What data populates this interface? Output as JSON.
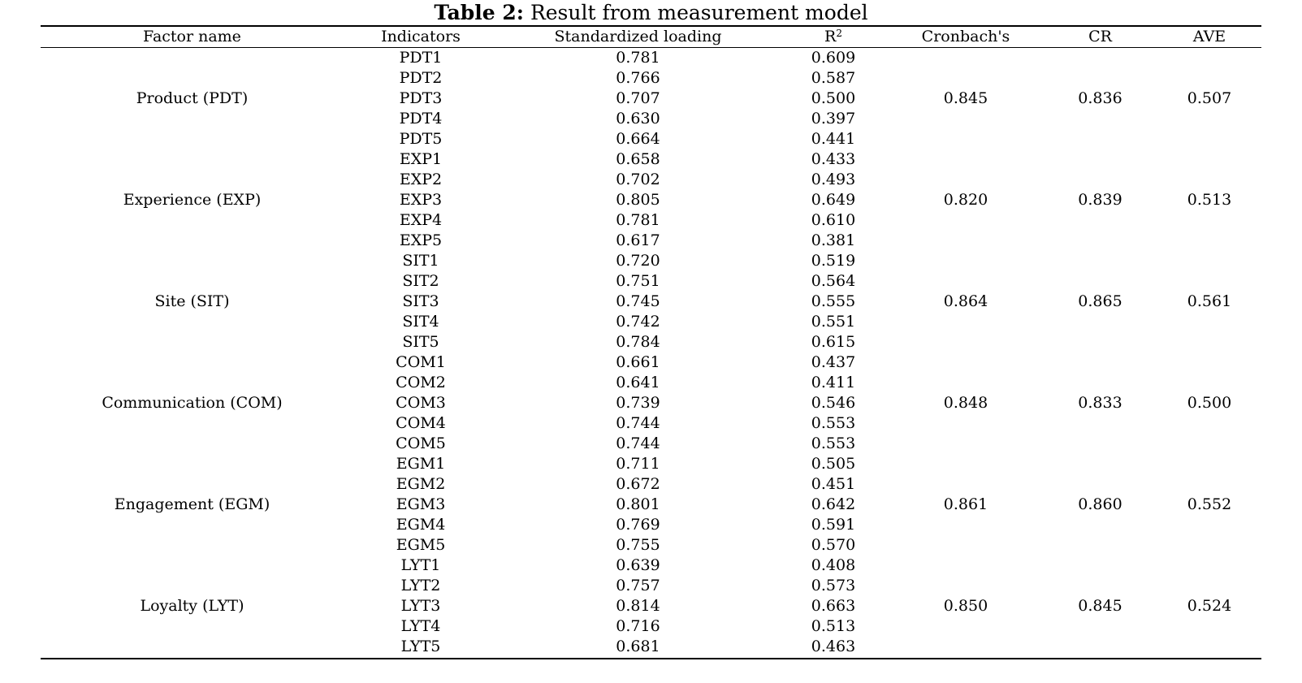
{
  "caption": {
    "label": "Table 2:",
    "text": "Result from measurement model"
  },
  "headers": {
    "factor": "Factor name",
    "indicators": "Indicators",
    "loading": "Standardized loading",
    "r2_base": "R",
    "r2_sup": "2",
    "cronbach": "Cronbach's",
    "cr": "CR",
    "ave": "AVE"
  },
  "factors": [
    {
      "name": "Product (PDT)",
      "cronbach": "0.845",
      "cr": "0.836",
      "ave": "0.507",
      "items": [
        {
          "indicator": "PDT1",
          "loading": "0.781",
          "r2": "0.609"
        },
        {
          "indicator": "PDT2",
          "loading": "0.766",
          "r2": "0.587"
        },
        {
          "indicator": "PDT3",
          "loading": "0.707",
          "r2": "0.500"
        },
        {
          "indicator": "PDT4",
          "loading": "0.630",
          "r2": "0.397"
        },
        {
          "indicator": "PDT5",
          "loading": "0.664",
          "r2": "0.441"
        }
      ]
    },
    {
      "name": "Experience (EXP)",
      "cronbach": "0.820",
      "cr": "0.839",
      "ave": "0.513",
      "items": [
        {
          "indicator": "EXP1",
          "loading": "0.658",
          "r2": "0.433"
        },
        {
          "indicator": "EXP2",
          "loading": "0.702",
          "r2": "0.493"
        },
        {
          "indicator": "EXP3",
          "loading": "0.805",
          "r2": "0.649"
        },
        {
          "indicator": "EXP4",
          "loading": "0.781",
          "r2": "0.610"
        },
        {
          "indicator": "EXP5",
          "loading": "0.617",
          "r2": "0.381"
        }
      ]
    },
    {
      "name": "Site (SIT)",
      "cronbach": "0.864",
      "cr": "0.865",
      "ave": "0.561",
      "items": [
        {
          "indicator": "SIT1",
          "loading": "0.720",
          "r2": "0.519"
        },
        {
          "indicator": "SIT2",
          "loading": "0.751",
          "r2": "0.564"
        },
        {
          "indicator": "SIT3",
          "loading": "0.745",
          "r2": "0.555"
        },
        {
          "indicator": "SIT4",
          "loading": "0.742",
          "r2": "0.551"
        },
        {
          "indicator": "SIT5",
          "loading": "0.784",
          "r2": "0.615"
        }
      ]
    },
    {
      "name": "Communication (COM)",
      "cronbach": "0.848",
      "cr": "0.833",
      "ave": "0.500",
      "items": [
        {
          "indicator": "COM1",
          "loading": "0.661",
          "r2": "0.437"
        },
        {
          "indicator": "COM2",
          "loading": "0.641",
          "r2": "0.411"
        },
        {
          "indicator": "COM3",
          "loading": "0.739",
          "r2": "0.546"
        },
        {
          "indicator": "COM4",
          "loading": "0.744",
          "r2": "0.553"
        },
        {
          "indicator": "COM5",
          "loading": "0.744",
          "r2": "0.553"
        }
      ]
    },
    {
      "name": "Engagement (EGM)",
      "cronbach": "0.861",
      "cr": "0.860",
      "ave": "0.552",
      "items": [
        {
          "indicator": "EGM1",
          "loading": "0.711",
          "r2": "0.505"
        },
        {
          "indicator": "EGM2",
          "loading": "0.672",
          "r2": "0.451"
        },
        {
          "indicator": "EGM3",
          "loading": "0.801",
          "r2": "0.642"
        },
        {
          "indicator": "EGM4",
          "loading": "0.769",
          "r2": "0.591"
        },
        {
          "indicator": "EGM5",
          "loading": "0.755",
          "r2": "0.570"
        }
      ]
    },
    {
      "name": "Loyalty (LYT)",
      "cronbach": "0.850",
      "cr": "0.845",
      "ave": "0.524",
      "items": [
        {
          "indicator": "LYT1",
          "loading": "0.639",
          "r2": "0.408"
        },
        {
          "indicator": "LYT2",
          "loading": "0.757",
          "r2": "0.573"
        },
        {
          "indicator": "LYT3",
          "loading": "0.814",
          "r2": "0.663"
        },
        {
          "indicator": "LYT4",
          "loading": "0.716",
          "r2": "0.513"
        },
        {
          "indicator": "LYT5",
          "loading": "0.681",
          "r2": "0.463"
        }
      ]
    }
  ]
}
